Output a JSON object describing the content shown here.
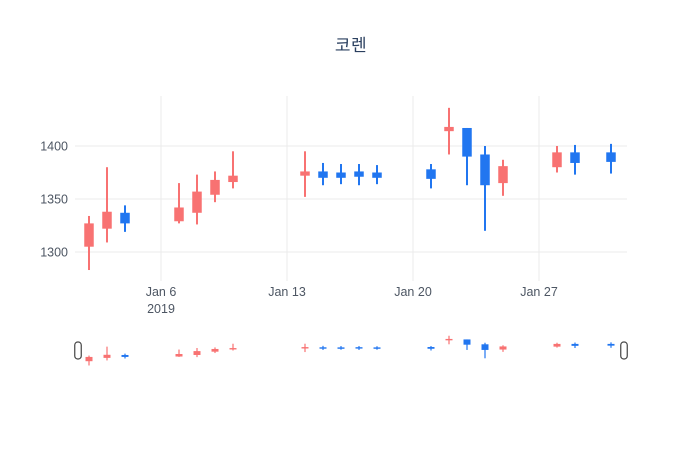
{
  "title": "코렌",
  "colors": {
    "increasing": "#f87272",
    "decreasing": "#2176f0",
    "grid": "#ebebeb",
    "axis_text": "#4d5663",
    "title_text": "#2a3f5f",
    "background": "#ffffff",
    "slider_handle_fill": "#ffffff",
    "slider_handle_stroke": "#444444"
  },
  "chart_data": {
    "type": "candlestick",
    "title": "코렌",
    "xlabel": "",
    "ylabel": "",
    "y_ticks": [
      1300,
      1350,
      1400
    ],
    "ylim": [
      1270,
      1445
    ],
    "x_ticks": [
      {
        "day": 6,
        "label": "Jan 6",
        "sublabel": "2019"
      },
      {
        "day": 13,
        "label": "Jan 13",
        "sublabel": ""
      },
      {
        "day": 20,
        "label": "Jan 20",
        "sublabel": ""
      },
      {
        "day": 27,
        "label": "Jan 27",
        "sublabel": ""
      }
    ],
    "grid": true,
    "legend": false,
    "rangeslider": true,
    "month": "Jan 2019",
    "ohlc": [
      {
        "date": "2019-01-02",
        "day": 2,
        "open": 1305,
        "high": 1334,
        "low": 1283,
        "close": 1327
      },
      {
        "date": "2019-01-03",
        "day": 3,
        "open": 1322,
        "high": 1380,
        "low": 1309,
        "close": 1338
      },
      {
        "date": "2019-01-04",
        "day": 4,
        "open": 1337,
        "high": 1344,
        "low": 1319,
        "close": 1327
      },
      {
        "date": "2019-01-07",
        "day": 7,
        "open": 1329,
        "high": 1365,
        "low": 1327,
        "close": 1342
      },
      {
        "date": "2019-01-08",
        "day": 8,
        "open": 1337,
        "high": 1373,
        "low": 1326,
        "close": 1357
      },
      {
        "date": "2019-01-09",
        "day": 9,
        "open": 1354,
        "high": 1376,
        "low": 1347,
        "close": 1368
      },
      {
        "date": "2019-01-10",
        "day": 10,
        "open": 1366,
        "high": 1395,
        "low": 1360,
        "close": 1372
      },
      {
        "date": "2019-01-14",
        "day": 14,
        "open": 1372,
        "high": 1395,
        "low": 1352,
        "close": 1376
      },
      {
        "date": "2019-01-15",
        "day": 15,
        "open": 1376,
        "high": 1384,
        "low": 1363,
        "close": 1370
      },
      {
        "date": "2019-01-16",
        "day": 16,
        "open": 1375,
        "high": 1383,
        "low": 1364,
        "close": 1370
      },
      {
        "date": "2019-01-17",
        "day": 17,
        "open": 1376,
        "high": 1383,
        "low": 1363,
        "close": 1371
      },
      {
        "date": "2019-01-18",
        "day": 18,
        "open": 1375,
        "high": 1382,
        "low": 1364,
        "close": 1370
      },
      {
        "date": "2019-01-21",
        "day": 21,
        "open": 1378,
        "high": 1383,
        "low": 1360,
        "close": 1369
      },
      {
        "date": "2019-01-22",
        "day": 22,
        "open": 1414,
        "high": 1436,
        "low": 1392,
        "close": 1418
      },
      {
        "date": "2019-01-23",
        "day": 23,
        "open": 1417,
        "high": 1417,
        "low": 1363,
        "close": 1390
      },
      {
        "date": "2019-01-24",
        "day": 24,
        "open": 1392,
        "high": 1400,
        "low": 1320,
        "close": 1363
      },
      {
        "date": "2019-01-25",
        "day": 25,
        "open": 1365,
        "high": 1387,
        "low": 1353,
        "close": 1381
      },
      {
        "date": "2019-01-28",
        "day": 28,
        "open": 1380,
        "high": 1400,
        "low": 1375,
        "close": 1394
      },
      {
        "date": "2019-01-29",
        "day": 29,
        "open": 1394,
        "high": 1401,
        "low": 1373,
        "close": 1384
      },
      {
        "date": "2019-01-31",
        "day": 31,
        "open": 1394,
        "high": 1402,
        "low": 1374,
        "close": 1385
      }
    ]
  }
}
